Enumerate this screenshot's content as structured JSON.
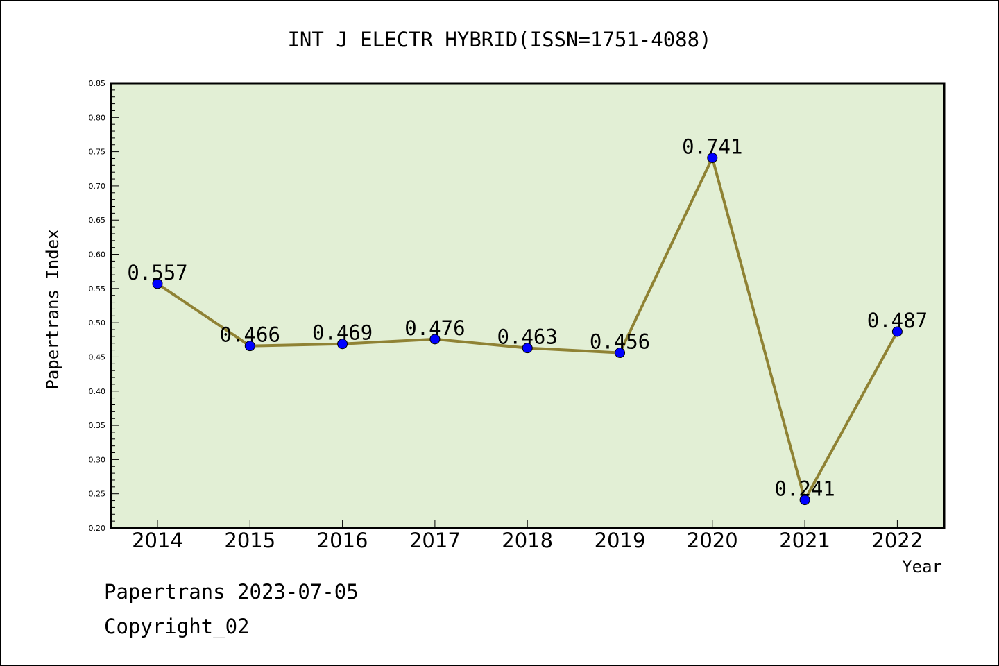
{
  "chart_data": {
    "type": "line",
    "title": "INT J ELECTR HYBRID(ISSN=1751-4088)",
    "xlabel": "Year",
    "ylabel": "Papertrans Index",
    "categories": [
      "2014",
      "2015",
      "2016",
      "2017",
      "2018",
      "2019",
      "2020",
      "2021",
      "2022"
    ],
    "series": [
      {
        "values": [
          0.557,
          0.466,
          0.469,
          0.476,
          0.463,
          0.456,
          0.741,
          0.241,
          0.487
        ],
        "labels": [
          "0.557",
          "0.466",
          "0.469",
          "0.476",
          "0.463",
          "0.456",
          "0.741",
          "0.241",
          "0.487"
        ]
      }
    ],
    "ylim": [
      0.2,
      0.85
    ],
    "yticks": [
      "0.20",
      "0.25",
      "0.30",
      "0.35",
      "0.40",
      "0.45",
      "0.50",
      "0.55",
      "0.60",
      "0.65",
      "0.70",
      "0.75",
      "0.80",
      "0.85"
    ],
    "grid": false,
    "legend": "none",
    "colors": {
      "plot_background": "#e2efd5",
      "line": "#8f8234",
      "marker": "#0000ff"
    }
  },
  "footer": {
    "line1": "Papertrans 2023-07-05",
    "line2": "Copyright_02"
  }
}
